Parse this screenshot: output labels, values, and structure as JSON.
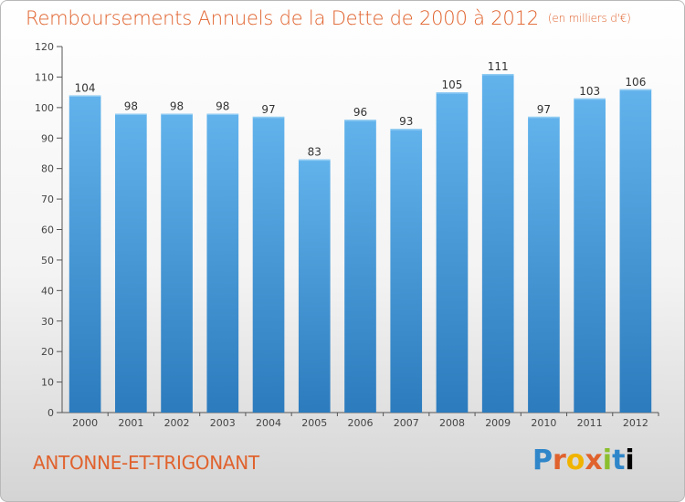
{
  "title": "Remboursements Annuels de la Dette de 2000 à 2012",
  "unit_note": "(en milliers d'€)",
  "commune": "ANTONNE-ET-TRIGONANT",
  "brand": {
    "letters": [
      "P",
      "r",
      "o",
      "x",
      "i",
      "t",
      "i"
    ],
    "text": "Proxiti"
  },
  "colors": {
    "title": "#e0622d",
    "bar_top": "#62b3ec",
    "bar_bottom": "#2c7bbd"
  },
  "chart_data": {
    "type": "bar",
    "title": "Remboursements Annuels de la Dette de 2000 à 2012",
    "xlabel": "",
    "ylabel": "",
    "categories": [
      "2000",
      "2001",
      "2002",
      "2003",
      "2004",
      "2005",
      "2006",
      "2007",
      "2008",
      "2009",
      "2010",
      "2011",
      "2012"
    ],
    "values": [
      104,
      98,
      98,
      98,
      97,
      83,
      96,
      93,
      105,
      111,
      97,
      103,
      106
    ],
    "ylim": [
      0,
      120
    ],
    "yticks": [
      0,
      10,
      20,
      30,
      40,
      50,
      60,
      70,
      80,
      90,
      100,
      110,
      120
    ],
    "grid": false,
    "data_labels": true
  }
}
